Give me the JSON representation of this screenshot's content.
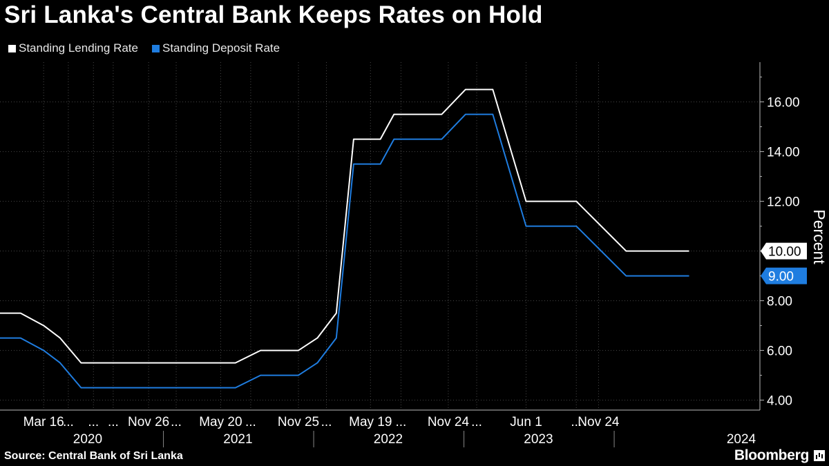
{
  "title": "Sri Lanka's Central Bank Keeps Rates on Hold",
  "source": "Source: Central Bank of Sri Lanka",
  "brand": "Bloomberg",
  "brand_icon": "bloomberg-terminal-icon",
  "colors": {
    "background": "#000000",
    "lending": "#ffffff",
    "deposit": "#1f7de0",
    "grid": "#444444"
  },
  "chart_data": {
    "type": "line",
    "title": "Sri Lanka's Central Bank Keeps Rates on Hold",
    "ylabel": "Percent",
    "ylim": [
      3.6,
      17.6
    ],
    "xlim": [
      "2019-12-01",
      "2024-12-20"
    ],
    "y_ticks": [
      "4.00",
      "6.00",
      "8.00",
      "10.00",
      "12.00",
      "14.00",
      "16.00"
    ],
    "y_tick_values": [
      4,
      6,
      8,
      10,
      12,
      14,
      16
    ],
    "grid": true,
    "legend_placement": "top-left",
    "x_tick_labels": [
      {
        "label": "Mar 16",
        "date": "2020-03-16"
      },
      {
        "label": "...",
        "date": "2020-05-15"
      },
      {
        "label": "...",
        "date": "2020-07-15"
      },
      {
        "label": "...",
        "date": "2020-09-01"
      },
      {
        "label": "Nov 26",
        "date": "2020-11-26"
      },
      {
        "label": "...",
        "date": "2021-02-01"
      },
      {
        "label": "May 20",
        "date": "2021-05-20"
      },
      {
        "label": "...",
        "date": "2021-08-01"
      },
      {
        "label": "Nov 25",
        "date": "2021-11-25"
      },
      {
        "label": "...",
        "date": "2022-02-01"
      },
      {
        "label": "May 19",
        "date": "2022-05-19"
      },
      {
        "label": "...",
        "date": "2022-08-01"
      },
      {
        "label": "Nov 24",
        "date": "2022-11-24"
      },
      {
        "label": "...",
        "date": "2023-02-01"
      },
      {
        "label": "Jun 1",
        "date": "2023-06-01"
      },
      {
        "label": "...",
        "date": "2023-10-01"
      },
      {
        "label": "Nov 24",
        "date": "2023-11-24"
      }
    ],
    "x_year_labels": [
      {
        "label": "2020",
        "date": "2020-07-01"
      },
      {
        "label": "2021",
        "date": "2021-07-01"
      },
      {
        "label": "2022",
        "date": "2022-07-01"
      },
      {
        "label": "2023",
        "date": "2023-07-01"
      },
      {
        "label": "2024",
        "date": "2024-07-01"
      }
    ],
    "year_boundaries": [
      "2021-01-01",
      "2022-01-01",
      "2023-01-01",
      "2024-01-01"
    ],
    "series": [
      {
        "name": "Standing Lending Rate",
        "color": "#ffffff",
        "last_label": "10.00",
        "points": [
          [
            "2019-12-01",
            7.5
          ],
          [
            "2020-01-20",
            7.5
          ],
          [
            "2020-03-16",
            7.0
          ],
          [
            "2020-04-25",
            6.5
          ],
          [
            "2020-06-15",
            5.5
          ],
          [
            "2021-06-25",
            5.5
          ],
          [
            "2021-08-25",
            6.0
          ],
          [
            "2021-11-25",
            6.0
          ],
          [
            "2022-01-10",
            6.5
          ],
          [
            "2022-02-25",
            7.5
          ],
          [
            "2022-04-08",
            14.5
          ],
          [
            "2022-06-12",
            14.5
          ],
          [
            "2022-07-15",
            15.5
          ],
          [
            "2022-11-08",
            15.5
          ],
          [
            "2023-01-05",
            16.5
          ],
          [
            "2023-03-12",
            16.5
          ],
          [
            "2023-06-01",
            12.0
          ],
          [
            "2023-10-01",
            12.0
          ],
          [
            "2024-01-30",
            10.0
          ],
          [
            "2024-07-01",
            10.0
          ]
        ]
      },
      {
        "name": "Standing Deposit Rate",
        "color": "#1f7de0",
        "last_label": "9.00",
        "points": [
          [
            "2019-12-01",
            6.5
          ],
          [
            "2020-01-20",
            6.5
          ],
          [
            "2020-03-16",
            6.0
          ],
          [
            "2020-04-25",
            5.5
          ],
          [
            "2020-06-15",
            4.5
          ],
          [
            "2021-06-25",
            4.5
          ],
          [
            "2021-08-25",
            5.0
          ],
          [
            "2021-11-25",
            5.0
          ],
          [
            "2022-01-10",
            5.5
          ],
          [
            "2022-02-25",
            6.5
          ],
          [
            "2022-04-08",
            13.5
          ],
          [
            "2022-06-12",
            13.5
          ],
          [
            "2022-07-15",
            14.5
          ],
          [
            "2022-11-08",
            14.5
          ],
          [
            "2023-01-05",
            15.5
          ],
          [
            "2023-03-12",
            15.5
          ],
          [
            "2023-06-01",
            11.0
          ],
          [
            "2023-10-01",
            11.0
          ],
          [
            "2024-01-30",
            9.0
          ],
          [
            "2024-07-01",
            9.0
          ]
        ]
      }
    ]
  }
}
